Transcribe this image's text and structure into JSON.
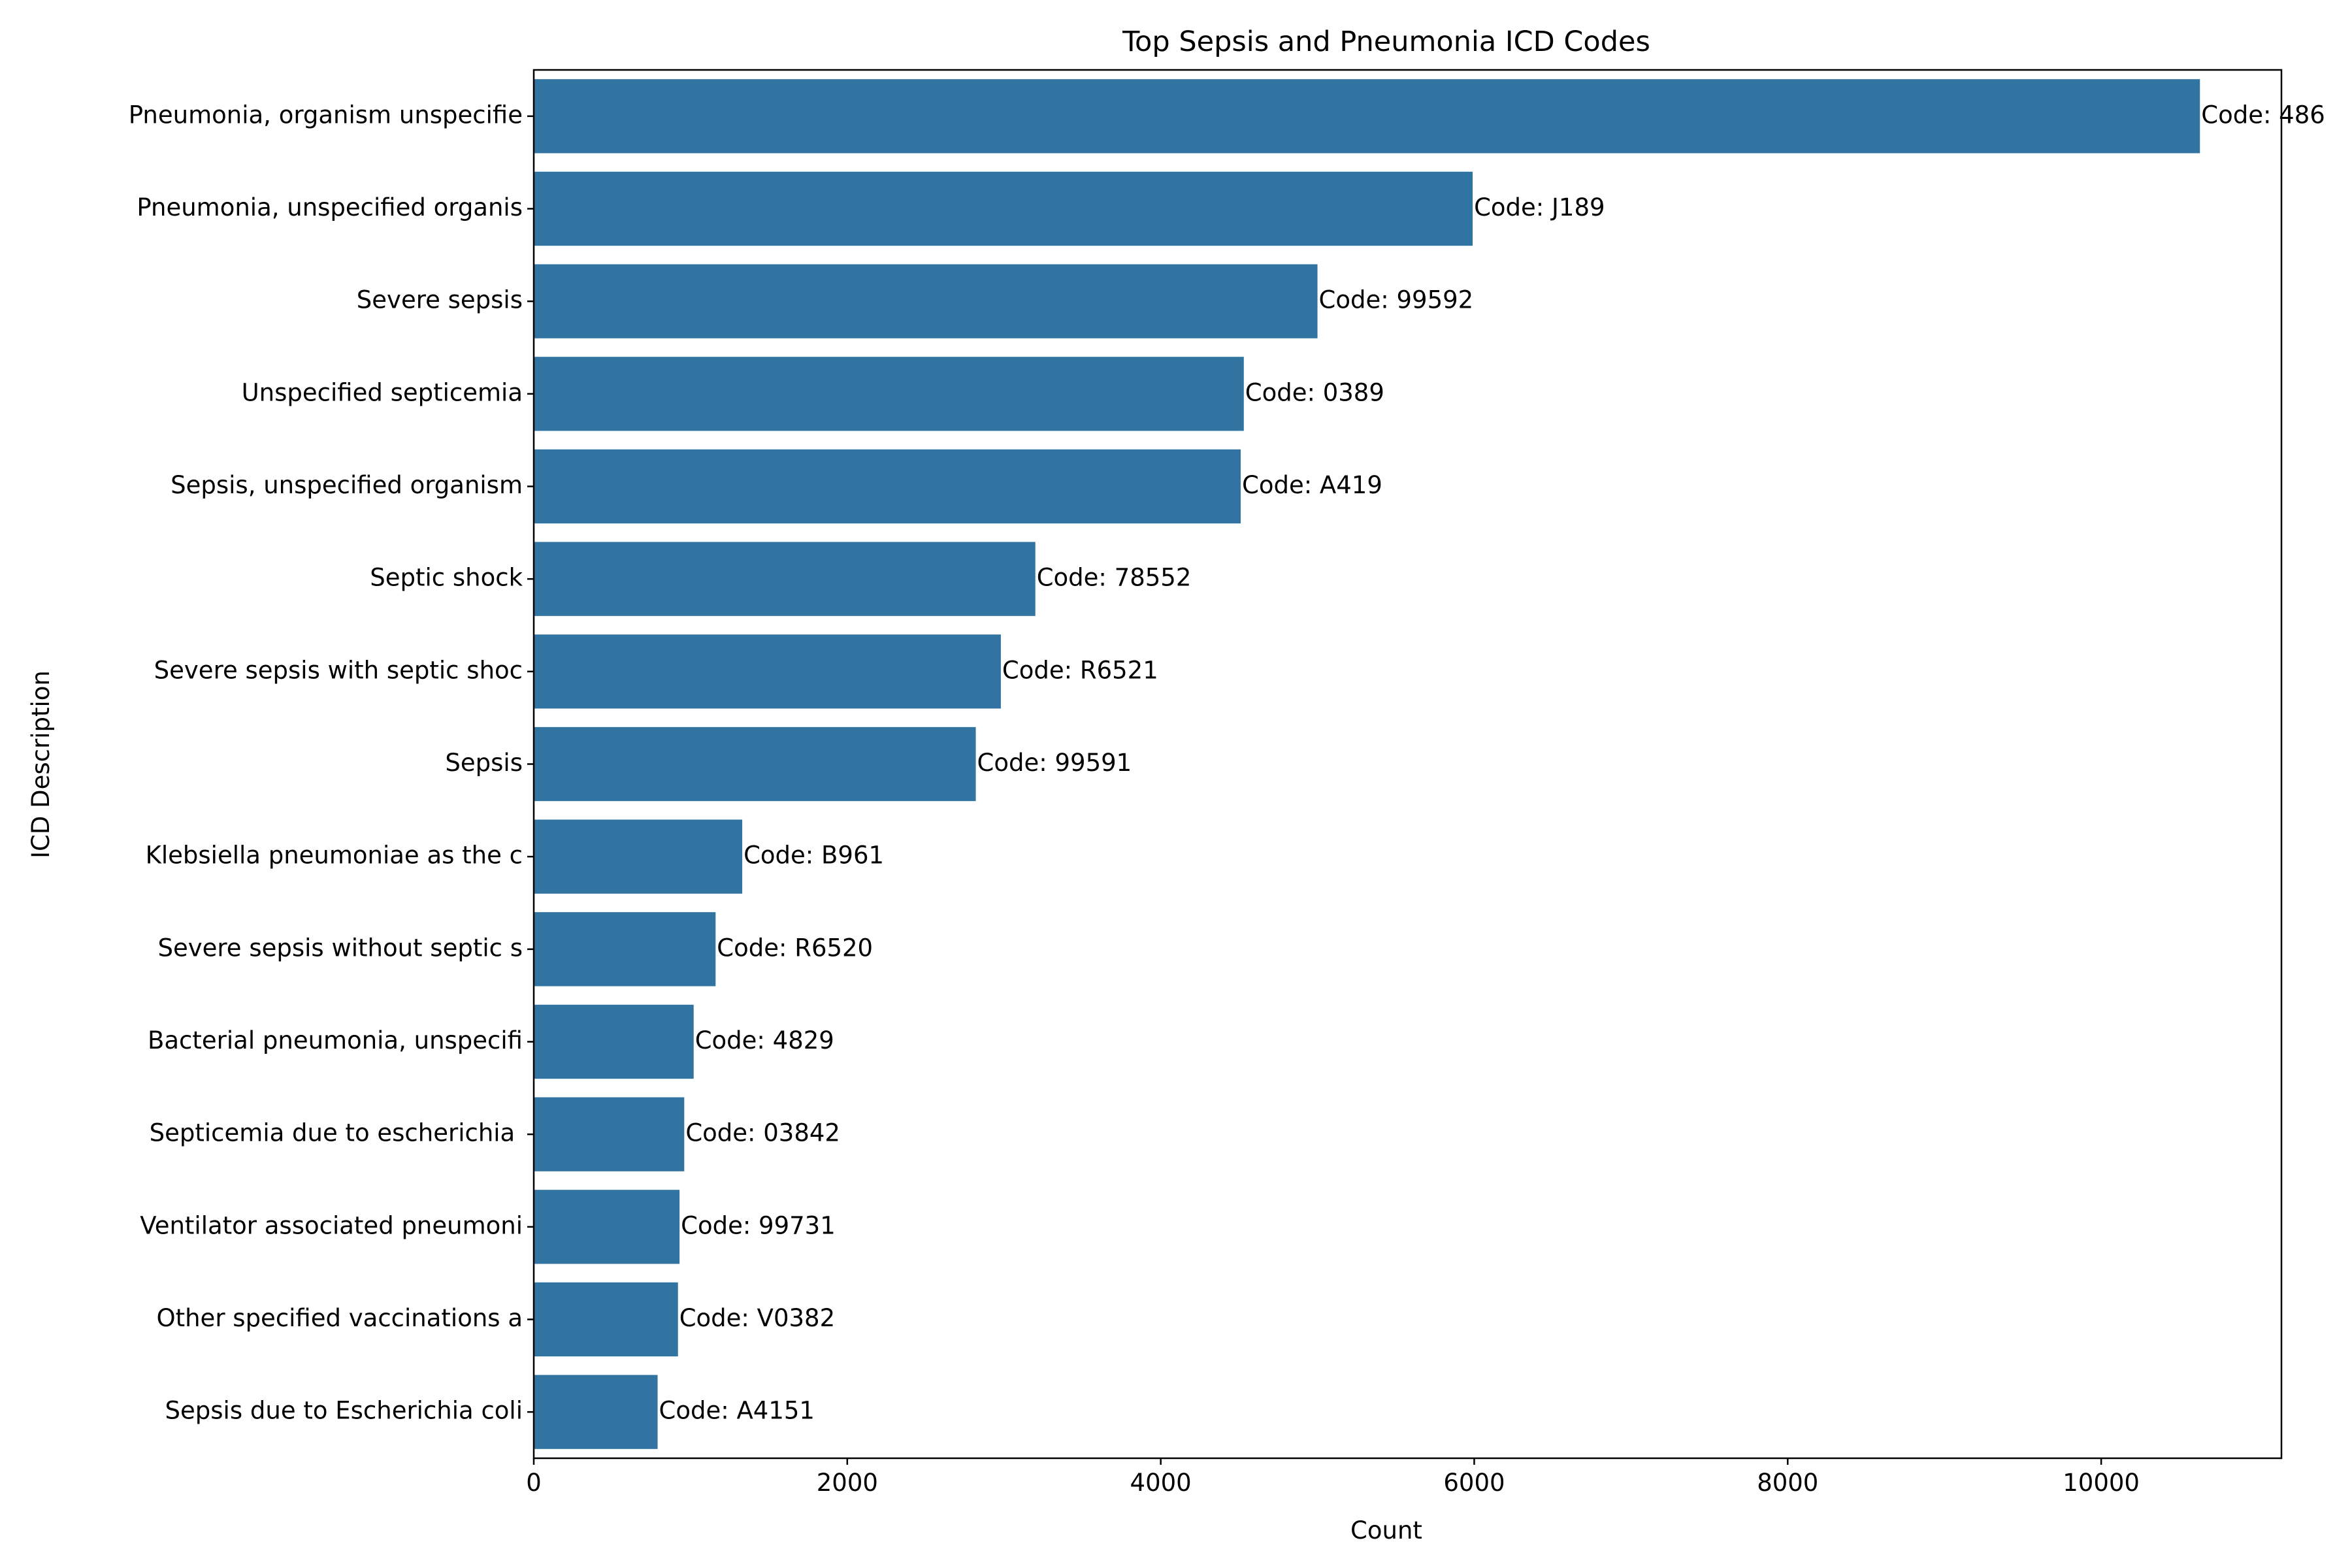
{
  "chart_data": {
    "type": "bar",
    "orientation": "horizontal",
    "title": "Top Sepsis and Pneumonia ICD Codes",
    "xlabel": "Count",
    "ylabel": "ICD Description",
    "xlim": [
      0,
      11150
    ],
    "xticks": [
      0,
      2000,
      4000,
      6000,
      8000,
      10000
    ],
    "grid": false,
    "legend": "none",
    "bar_color": "#3274a1",
    "categories": [
      "Pneumonia, organism unspecifie",
      "Pneumonia, unspecified organis",
      "Severe sepsis",
      "Unspecified septicemia",
      "Sepsis, unspecified organism",
      "Septic shock",
      "Severe sepsis with septic shoc",
      "Sepsis",
      "Klebsiella pneumoniae as the c",
      "Severe sepsis without septic s",
      "Bacterial pneumonia, unspecifi",
      "Septicemia due to escherichia ",
      "Ventilator associated pneumoni",
      "Other specified vaccinations a",
      "Sepsis due to Escherichia coli"
    ],
    "values": [
      10630,
      5990,
      5000,
      4530,
      4510,
      3200,
      2980,
      2820,
      1330,
      1160,
      1020,
      960,
      930,
      920,
      790
    ],
    "annotations": [
      "Code: 486",
      "Code: J189",
      "Code: 99592",
      "Code: 0389",
      "Code: A419",
      "Code: 78552",
      "Code: R6521",
      "Code: 99591",
      "Code: B961",
      "Code: R6520",
      "Code: 4829",
      "Code: 03842",
      "Code: 99731",
      "Code: V0382",
      "Code: A4151"
    ]
  }
}
